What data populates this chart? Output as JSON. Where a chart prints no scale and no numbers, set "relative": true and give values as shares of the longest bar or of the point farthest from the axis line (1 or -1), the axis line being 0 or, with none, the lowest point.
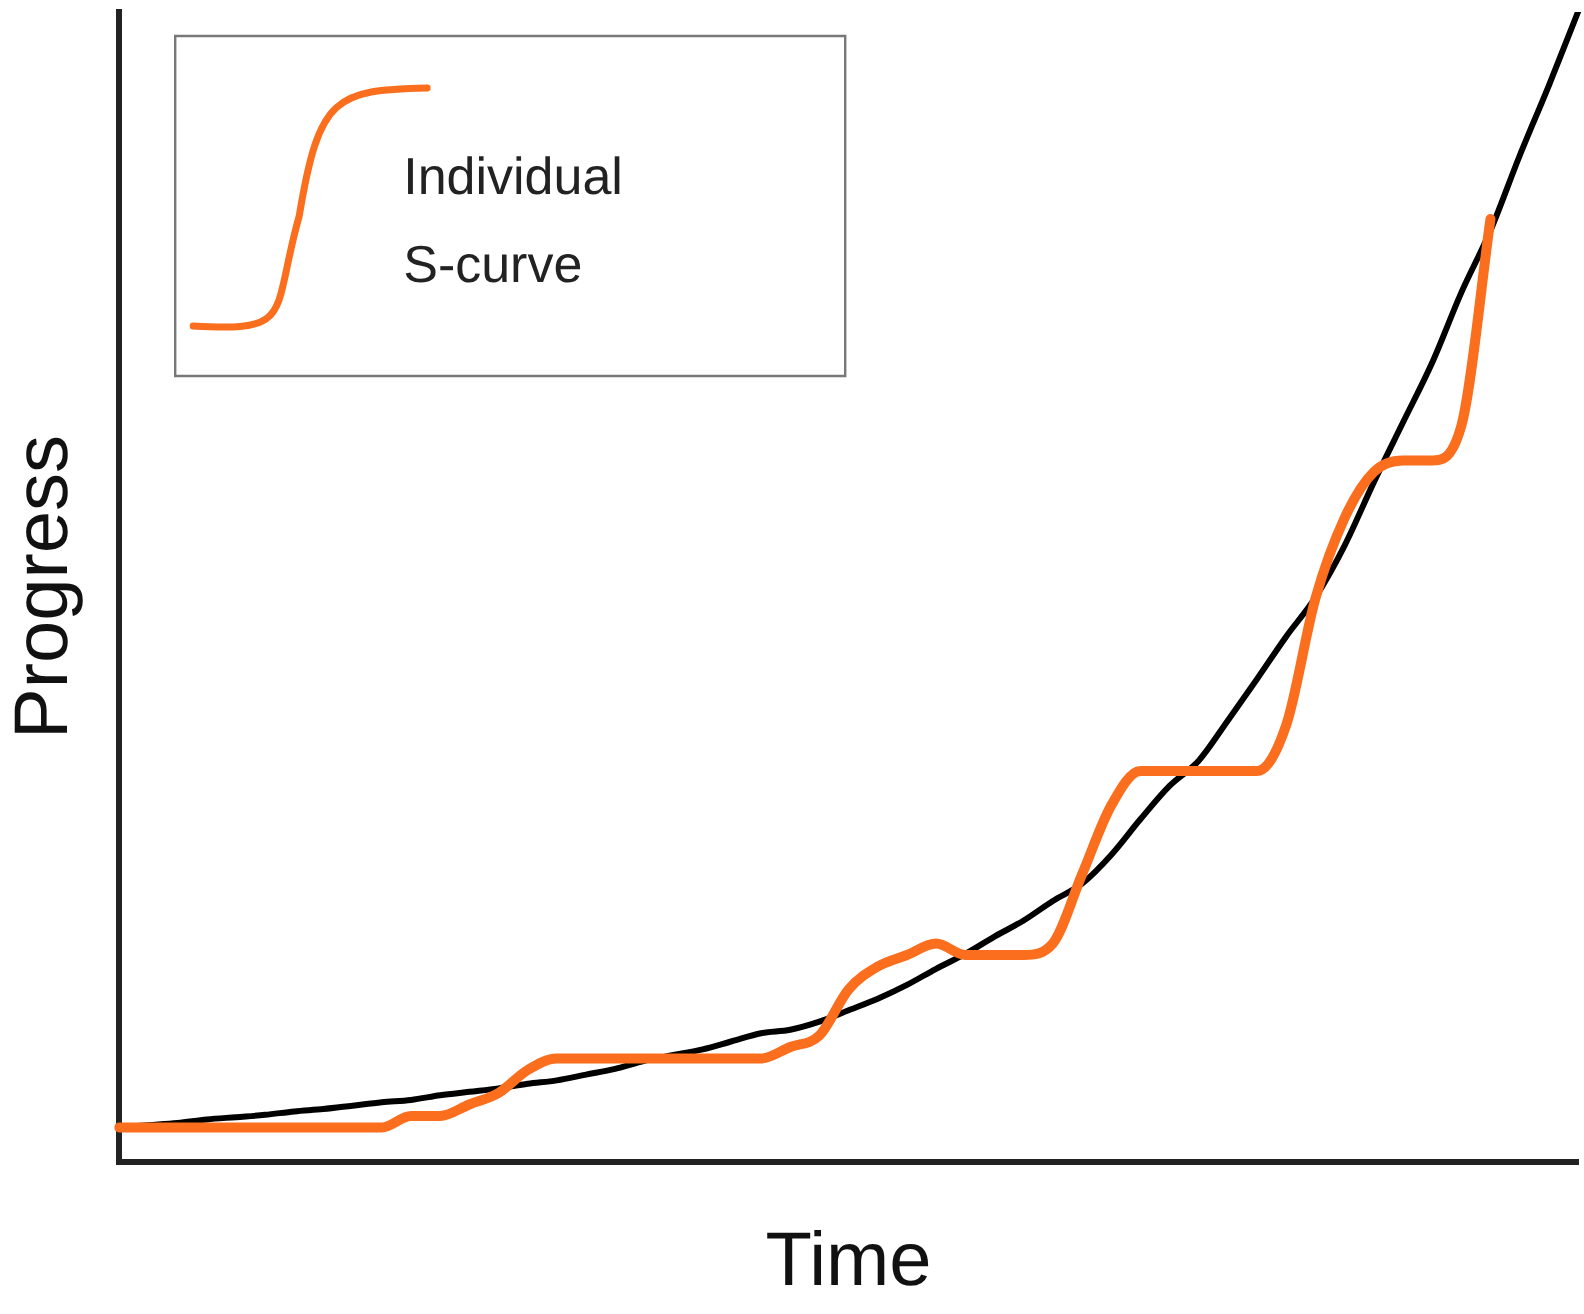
{
  "chart_data": {
    "type": "line",
    "relative": true,
    "xlabel": "Time",
    "ylabel": "Progress",
    "legend": "top left",
    "marker": "none",
    "line_style": "solid",
    "grid": false,
    "categories": [
      null,
      null,
      null,
      null,
      null,
      null,
      null,
      null,
      null,
      null,
      null,
      null,
      null,
      null,
      null,
      null,
      null,
      null,
      null,
      null,
      null,
      null,
      null,
      null,
      null,
      null,
      null,
      null,
      null,
      null,
      null,
      null,
      null,
      null,
      null,
      null,
      null,
      null,
      null,
      null,
      null,
      null,
      null,
      null,
      null,
      null,
      null,
      null,
      null,
      null,
      null
    ],
    "series": [
      {
        "color": "#000000",
        "values": [
          0.03,
          0.032,
          0.034,
          0.037,
          0.039,
          0.041,
          0.044,
          0.046,
          0.049,
          0.052,
          0.054,
          0.058,
          0.061,
          0.064,
          0.068,
          0.071,
          0.076,
          0.081,
          0.088,
          0.093,
          0.098,
          0.105,
          0.112,
          0.115,
          0.122,
          0.132,
          0.142,
          0.154,
          0.168,
          0.181,
          0.196,
          0.21,
          0.227,
          0.242,
          0.267,
          0.298,
          0.327,
          0.349,
          0.384,
          0.42,
          0.457,
          0.491,
          0.536,
          0.591,
          0.643,
          0.695,
          0.756,
          0.81,
          0.875,
          0.936,
          1
        ]
      },
      {
        "name": "Individual S-curve",
        "color": "#fa6e1e",
        "values": [
          0.03,
          0.03,
          0.03,
          0.03,
          0.03,
          0.03,
          0.03,
          0.03,
          0.03,
          0.03,
          0.04,
          0.04,
          0.05,
          0.06,
          0.08,
          0.09,
          0.09,
          0.09,
          0.09,
          0.09,
          0.09,
          0.09,
          0.09,
          0.1,
          0.11,
          0.15,
          0.17,
          0.18,
          0.19,
          0.18,
          0.18,
          0.18,
          0.19,
          0.25,
          0.31,
          0.34,
          0.34,
          0.34,
          0.34,
          0.34,
          0.38,
          0.49,
          0.56,
          0.6,
          0.61,
          0.61,
          0.64,
          0.82,
          null,
          null,
          null
        ]
      }
    ]
  }
}
